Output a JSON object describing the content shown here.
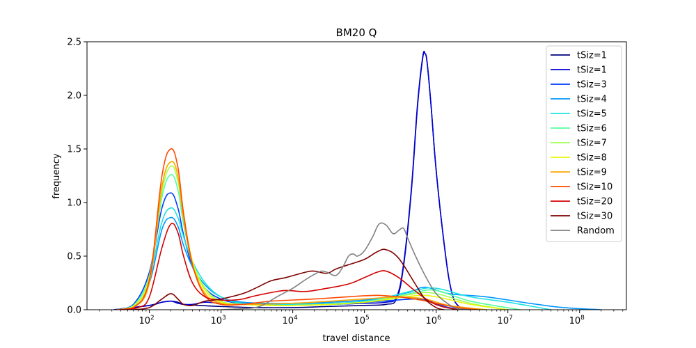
{
  "chart_data": {
    "type": "line",
    "title": "BM20 Q",
    "xlabel": "travel distance",
    "ylabel": "frequency",
    "x_scale": "log",
    "xlim": [
      13.5,
      450000000
    ],
    "ylim": [
      0,
      2.5
    ],
    "x_ticks": [
      {
        "base": "10",
        "exp": "2",
        "value": 100
      },
      {
        "base": "10",
        "exp": "3",
        "value": 1000
      },
      {
        "base": "10",
        "exp": "4",
        "value": 10000
      },
      {
        "base": "10",
        "exp": "5",
        "value": 100000
      },
      {
        "base": "10",
        "exp": "6",
        "value": 1000000
      },
      {
        "base": "10",
        "exp": "7",
        "value": 10000000
      },
      {
        "base": "10",
        "exp": "8",
        "value": 100000000
      }
    ],
    "y_ticks": [
      "0.0",
      "0.5",
      "1.0",
      "1.5",
      "2.0",
      "2.5"
    ],
    "grid": false,
    "legend_position": "top-right",
    "series": [
      {
        "name": "tSiz=1",
        "color": "#00007f",
        "x": [
          32,
          100,
          150,
          200,
          250,
          300,
          500,
          1000,
          3000,
          10000,
          30000,
          100000,
          200000,
          280000,
          350000,
          450000,
          550000,
          650000,
          700000,
          750000,
          850000,
          1000000,
          1300000,
          1600000,
          2000000,
          3000000
        ],
        "y": [
          0,
          0.04,
          0.07,
          0.08,
          0.07,
          0.05,
          0.04,
          0.03,
          0.02,
          0.02,
          0.03,
          0.04,
          0.05,
          0.1,
          0.4,
          1.1,
          1.9,
          2.35,
          2.39,
          2.3,
          1.9,
          1.3,
          0.6,
          0.2,
          0.04,
          0
        ]
      },
      {
        "name": "tSiz=1",
        "color": "#0000d4",
        "x": [
          32,
          100,
          150,
          200,
          250,
          300,
          400,
          600,
          1000,
          3000,
          10000,
          30000,
          100000,
          200000,
          280000,
          350000,
          450000,
          550000,
          650000,
          700000,
          750000,
          850000,
          1000000,
          1300000,
          1600000,
          2000000,
          3000000
        ],
        "y": [
          0,
          0.04,
          0.07,
          0.08,
          0.06,
          0.05,
          0.05,
          0.07,
          0.06,
          0.05,
          0.05,
          0.05,
          0.06,
          0.07,
          0.12,
          0.42,
          1.12,
          1.92,
          2.36,
          2.39,
          2.3,
          1.9,
          1.3,
          0.6,
          0.2,
          0.04,
          0
        ]
      },
      {
        "name": "tSiz=3",
        "color": "#003cff",
        "x": [
          35,
          60,
          100,
          150,
          200,
          250,
          300,
          400,
          600,
          1000,
          2000,
          10000,
          100000,
          500000,
          800000,
          1500000,
          3000000
        ],
        "y": [
          0,
          0.05,
          0.35,
          0.95,
          1.09,
          0.95,
          0.7,
          0.4,
          0.2,
          0.1,
          0.06,
          0.05,
          0.07,
          0.1,
          0.08,
          0.02,
          0
        ]
      },
      {
        "name": "tSiz=4",
        "color": "#0096ff",
        "x": [
          35,
          60,
          100,
          150,
          200,
          250,
          300,
          400,
          600,
          1000,
          2000,
          10000,
          100000,
          400000,
          700000,
          1500000,
          5000000,
          20000000,
          60000000,
          200000000
        ],
        "y": [
          0,
          0.03,
          0.25,
          0.75,
          0.86,
          0.78,
          0.6,
          0.4,
          0.23,
          0.12,
          0.07,
          0.06,
          0.09,
          0.16,
          0.21,
          0.15,
          0.12,
          0.06,
          0.02,
          0
        ]
      },
      {
        "name": "tSiz=5",
        "color": "#1ce2e2",
        "x": [
          35,
          60,
          100,
          150,
          200,
          250,
          300,
          400,
          600,
          1000,
          2000,
          10000,
          100000,
          500000,
          1000000,
          3000000,
          10000000,
          40000000
        ],
        "y": [
          0,
          0.04,
          0.3,
          0.82,
          0.95,
          0.86,
          0.68,
          0.45,
          0.25,
          0.12,
          0.06,
          0.05,
          0.08,
          0.18,
          0.2,
          0.12,
          0.07,
          0
        ]
      },
      {
        "name": "tSiz=6",
        "color": "#55ff9f",
        "x": [
          35,
          60,
          100,
          150,
          200,
          250,
          300,
          400,
          600,
          1000,
          2000,
          10000,
          100000,
          500000,
          1000000,
          3000000,
          15000000
        ],
        "y": [
          0,
          0.04,
          0.32,
          1.05,
          1.26,
          1.12,
          0.8,
          0.45,
          0.2,
          0.08,
          0.05,
          0.04,
          0.07,
          0.16,
          0.18,
          0.08,
          0
        ]
      },
      {
        "name": "tSiz=7",
        "color": "#a1ff55",
        "x": [
          35,
          60,
          100,
          150,
          200,
          250,
          300,
          400,
          600,
          1000,
          2000,
          10000,
          100000,
          500000,
          1000000,
          3000000,
          10000000
        ],
        "y": [
          0,
          0.03,
          0.3,
          1.1,
          1.34,
          1.2,
          0.85,
          0.45,
          0.2,
          0.08,
          0.05,
          0.04,
          0.07,
          0.15,
          0.15,
          0.06,
          0
        ]
      },
      {
        "name": "tSiz=8",
        "color": "#e8f708",
        "x": [
          35,
          60,
          100,
          150,
          200,
          250,
          300,
          400,
          600,
          1000,
          2000,
          10000,
          100000,
          500000,
          1000000,
          3000000,
          10000000
        ],
        "y": [
          0,
          0.03,
          0.3,
          1.15,
          1.38,
          1.25,
          0.88,
          0.45,
          0.18,
          0.07,
          0.05,
          0.04,
          0.07,
          0.13,
          0.12,
          0.05,
          0
        ]
      },
      {
        "name": "tSiz=9",
        "color": "#ffa700",
        "x": [
          35,
          60,
          100,
          150,
          200,
          250,
          300,
          400,
          600,
          1000,
          2000,
          10000,
          100000,
          300000,
          700000,
          1500000,
          5000000
        ],
        "y": [
          0,
          0.02,
          0.25,
          1.15,
          1.38,
          1.25,
          0.85,
          0.42,
          0.15,
          0.06,
          0.05,
          0.06,
          0.1,
          0.12,
          0.1,
          0.04,
          0
        ]
      },
      {
        "name": "tSiz=10",
        "color": "#ff4b00",
        "x": [
          35,
          60,
          100,
          150,
          200,
          250,
          300,
          400,
          600,
          1000,
          2000,
          5000,
          20000,
          100000,
          200000,
          500000,
          1000000,
          2000000,
          4000000
        ],
        "y": [
          0,
          0.02,
          0.28,
          1.25,
          1.5,
          1.33,
          0.9,
          0.42,
          0.13,
          0.05,
          0.05,
          0.08,
          0.1,
          0.13,
          0.13,
          0.1,
          0.06,
          0.02,
          0
        ]
      },
      {
        "name": "tSiz=20",
        "color": "#d40000",
        "x": [
          40,
          70,
          100,
          150,
          200,
          250,
          300,
          400,
          600,
          1000,
          1500,
          2000,
          3000,
          5000,
          8000,
          15000,
          30000,
          60000,
          100000,
          150000,
          200000,
          300000,
          500000,
          800000,
          1200000,
          2000000
        ],
        "y": [
          0,
          0.02,
          0.12,
          0.58,
          0.8,
          0.72,
          0.5,
          0.25,
          0.12,
          0.09,
          0.09,
          0.1,
          0.13,
          0.16,
          0.18,
          0.17,
          0.2,
          0.24,
          0.3,
          0.35,
          0.36,
          0.3,
          0.18,
          0.08,
          0.03,
          0
        ]
      },
      {
        "name": "tSiz=30",
        "color": "#7f0000",
        "x": [
          60,
          100,
          150,
          200,
          250,
          300,
          400,
          600,
          1000,
          2000,
          3000,
          5000,
          8000,
          15000,
          20000,
          30000,
          40000,
          60000,
          100000,
          150000,
          200000,
          300000,
          500000,
          700000,
          1000000,
          1300000
        ],
        "y": [
          0,
          0.02,
          0.1,
          0.15,
          0.1,
          0.05,
          0.04,
          0.08,
          0.1,
          0.15,
          0.2,
          0.27,
          0.3,
          0.35,
          0.36,
          0.34,
          0.38,
          0.42,
          0.47,
          0.54,
          0.56,
          0.48,
          0.25,
          0.1,
          0.02,
          0
        ]
      },
      {
        "name": "Random",
        "color": "#808080",
        "x": [
          1000,
          2000,
          3000,
          4000,
          6000,
          10000,
          15000,
          20000,
          25000,
          30000,
          40000,
          50000,
          60000,
          70000,
          80000,
          100000,
          130000,
          160000,
          200000,
          250000,
          300000,
          350000,
          400000,
          500000,
          700000,
          1000000,
          1500000,
          2000000,
          3000000
        ],
        "y": [
          0,
          0.01,
          0.02,
          0.05,
          0.12,
          0.2,
          0.28,
          0.33,
          0.36,
          0.35,
          0.32,
          0.4,
          0.5,
          0.52,
          0.5,
          0.55,
          0.68,
          0.8,
          0.79,
          0.71,
          0.74,
          0.76,
          0.67,
          0.52,
          0.32,
          0.15,
          0.05,
          0.01,
          0
        ]
      }
    ]
  }
}
